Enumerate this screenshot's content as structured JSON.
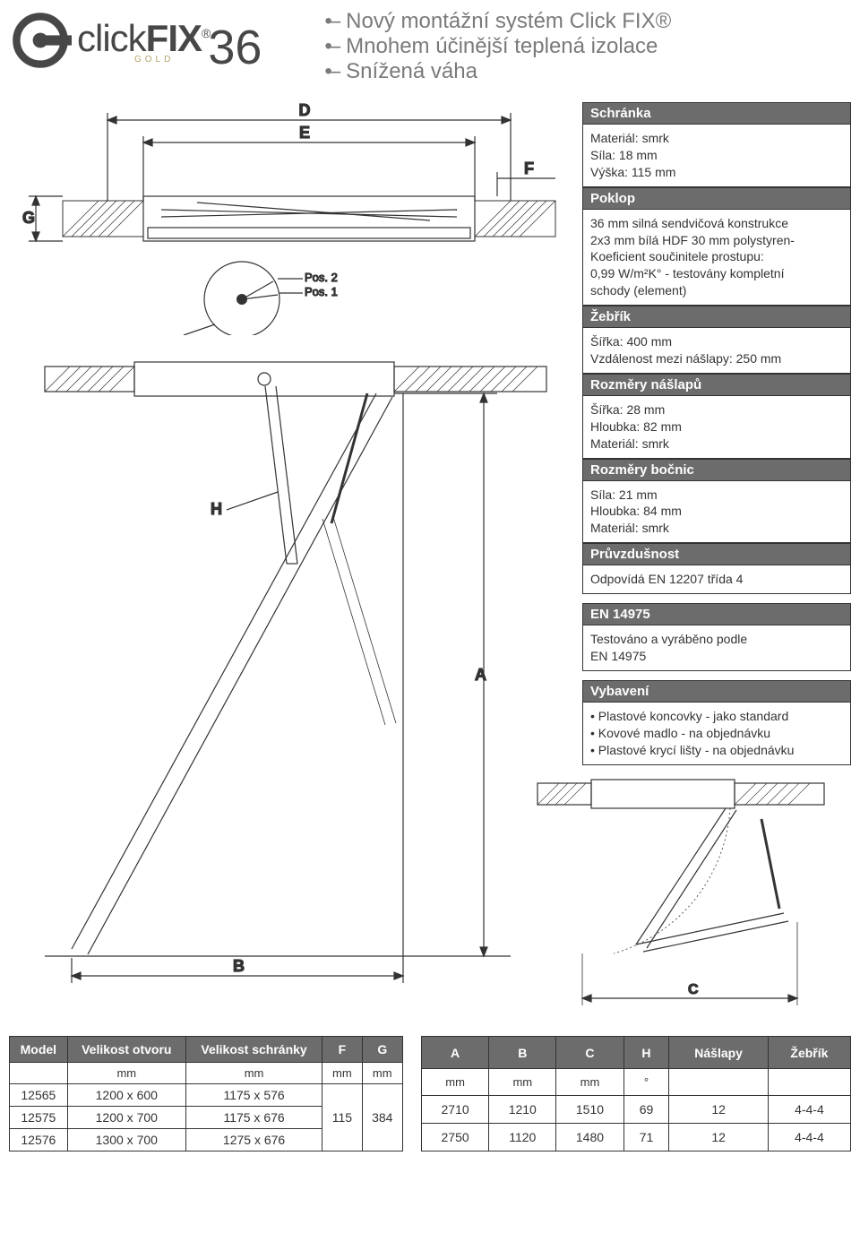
{
  "logo": {
    "brand_part1": "click",
    "brand_part2": "FIX",
    "reg": "®",
    "sub": "GOLD",
    "model_num": "36"
  },
  "bullets": [
    "Nový montážní systém Click FIX®",
    "Mnohem účinější teplená izolace",
    "Snížená váha"
  ],
  "colors": {
    "header_bg": "#6c6c6c",
    "header_fg": "#ffffff",
    "rule": "#333333",
    "muted": "#7a7a7a",
    "gold": "#b6a269"
  },
  "specs": [
    {
      "title": "Schránka",
      "lines": [
        "Materiál: smrk",
        "Síla: 18 mm",
        "Výška: 115 mm"
      ]
    },
    {
      "title": "Poklop",
      "lines": [
        "36 mm silná sendvičová konstrukce",
        "2x3 mm bílá HDF 30 mm polystyren-",
        "Koeficient součinitele prostupu:",
        "0,99 W/m²K° -  testovány kompletní",
        "schody (element)"
      ]
    },
    {
      "title": "Žebřík",
      "lines": [
        "Šířka: 400 mm",
        "Vzdálenost mezi nášlapy: 250 mm"
      ]
    },
    {
      "title": "Rozměry nášlapů",
      "lines": [
        "Šířka: 28 mm",
        "Hloubka: 82 mm",
        "Materiál: smrk"
      ]
    },
    {
      "title": "Rozměry bočnic",
      "lines": [
        "Síla: 21 mm",
        "Hloubka: 84 mm",
        "Materiál: smrk"
      ]
    },
    {
      "title": "Průvzdušnost",
      "lines": [
        "Odpovídá EN 12207 třída 4"
      ],
      "gap_after": true
    },
    {
      "title": "EN 14975",
      "lines": [
        "Testováno a vyráběno podle",
        "EN 14975"
      ],
      "gap_after": true
    },
    {
      "title": "Vybavení",
      "list": [
        "Plastové koncovky - jako standard",
        "Kovové madlo - na objednávku",
        "Plastové krycí lišty - na objednávku"
      ]
    }
  ],
  "diagram_labels": {
    "top": [
      "D",
      "E",
      "F",
      "G",
      "Pos. 2",
      "Pos. 1"
    ],
    "side": [
      "H",
      "A",
      "B",
      "C"
    ]
  },
  "table1": {
    "columns": [
      "Model",
      "Velikost otvoru",
      "Velikost schránky",
      "F",
      "G"
    ],
    "units": [
      "",
      "mm",
      "mm",
      "mm",
      "mm"
    ],
    "rows": [
      [
        "12565",
        "1200 x 600",
        "1175 x 576",
        "",
        ""
      ],
      [
        "12575",
        "1200 x 700",
        "1175 x 676",
        "115",
        "384"
      ],
      [
        "12576",
        "1300 x 700",
        "1275 x 676",
        "",
        ""
      ]
    ],
    "rowspan_col3": {
      "start_row": 0,
      "span": 3,
      "value": "115"
    },
    "rowspan_col4": {
      "start_row": 0,
      "span": 3,
      "value": "384"
    }
  },
  "table2": {
    "columns": [
      "A",
      "B",
      "C",
      "H",
      "Nášlapy",
      "Žebřík"
    ],
    "units": [
      "mm",
      "mm",
      "mm",
      "°",
      "",
      ""
    ],
    "rows": [
      [
        "2710",
        "1210",
        "1510",
        "69",
        "12",
        "4-4-4"
      ],
      [
        "2750",
        "1120",
        "1480",
        "71",
        "12",
        "4-4-4"
      ]
    ]
  }
}
